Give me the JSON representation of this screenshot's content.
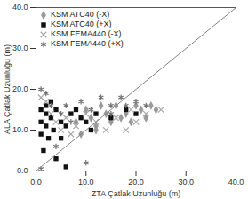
{
  "chart_data": {
    "type": "scatter",
    "xlabel": "ZTA Çatlak Uzunluğu (m)",
    "ylabel": "ALA Çatlak Uzunluğu (m)",
    "xlim": [
      0,
      40
    ],
    "ylim": [
      0,
      40
    ],
    "xticks": [
      {
        "value": 0,
        "label": "0.0"
      },
      {
        "value": 10,
        "label": "10.0"
      },
      {
        "value": 20,
        "label": "20.0"
      },
      {
        "value": 30,
        "label": "30.0"
      },
      {
        "value": 40,
        "label": "40.0"
      }
    ],
    "yticks": [
      {
        "value": 0,
        "label": "0.0"
      },
      {
        "value": 10,
        "label": "10.0"
      },
      {
        "value": 20,
        "label": "20.0"
      },
      {
        "value": 30,
        "label": "30.0"
      },
      {
        "value": 40,
        "label": "40.0"
      }
    ],
    "legend": "upper-left",
    "grid": false,
    "series": [
      {
        "name": "KSM ATC40 (-X)",
        "color": "#9a9a9a",
        "marker": "diamond",
        "x": [
          8,
          10,
          11,
          12,
          13,
          14,
          15,
          16,
          17,
          18,
          19,
          20,
          21,
          22,
          23,
          24,
          12,
          9
        ],
        "values": [
          12,
          15,
          13,
          11,
          16,
          14,
          12,
          16,
          13,
          14,
          12,
          16,
          15,
          13,
          16,
          15,
          10,
          9
        ]
      },
      {
        "name": "KSM ATC40 (+X)",
        "color": "#111111",
        "marker": "square",
        "x": [
          1,
          1,
          1,
          1.5,
          2,
          2,
          2,
          2.5,
          3,
          3,
          3.5,
          4,
          4,
          5,
          5,
          6,
          6,
          7,
          8,
          9,
          10,
          11,
          12,
          15,
          18,
          20
        ],
        "values": [
          15,
          12,
          9,
          5,
          16,
          14,
          11,
          8,
          13,
          17,
          10,
          3,
          15,
          12,
          8,
          11,
          1,
          14,
          15,
          13,
          12,
          10,
          14,
          13,
          15,
          14
        ]
      },
      {
        "name": "KSM FEMA440 (-X)",
        "color": "#a8a8a8",
        "marker": "x",
        "x": [
          1,
          2,
          3,
          4,
          5,
          6,
          7,
          8,
          10,
          12,
          14,
          16,
          18,
          20,
          22,
          25,
          19
        ],
        "values": [
          18,
          17,
          14,
          12,
          10,
          13,
          9,
          11,
          14,
          12,
          10,
          13,
          10,
          12,
          14,
          15,
          15
        ]
      },
      {
        "name": "KSM FEMA440 (+X)",
        "color": "#707070",
        "marker": "asterisk",
        "x": [
          1,
          2,
          3,
          4,
          5,
          6,
          7,
          9,
          11,
          13,
          15,
          17,
          18,
          20,
          22,
          15,
          10,
          1
        ],
        "values": [
          20,
          19,
          16,
          6,
          14,
          16,
          12,
          17,
          15,
          18,
          16,
          18,
          16,
          17,
          16,
          14,
          2,
          0.5
        ]
      },
      {
        "type": "line",
        "color": "#808080",
        "x": [
          0,
          40
        ],
        "values": [
          0,
          40
        ]
      }
    ]
  }
}
